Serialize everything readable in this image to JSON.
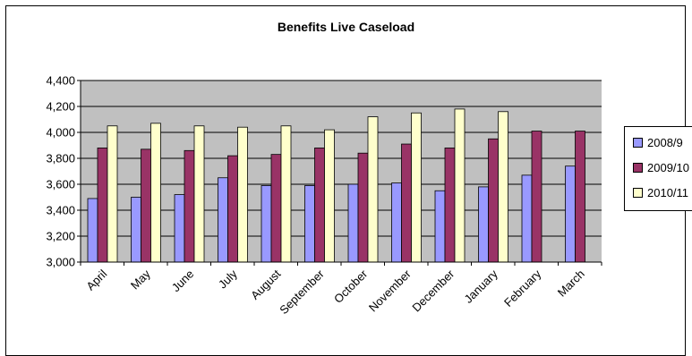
{
  "chart_data": {
    "type": "bar",
    "title": "Benefits Live Caseload",
    "categories": [
      "April",
      "May",
      "June",
      "July",
      "August",
      "September",
      "October",
      "November",
      "December",
      "January",
      "February",
      "March"
    ],
    "series": [
      {
        "name": "2008/9",
        "color": "#9999FF",
        "values": [
          3490,
          3500,
          3520,
          3650,
          3590,
          3590,
          3600,
          3610,
          3550,
          3580,
          3670,
          3740
        ]
      },
      {
        "name": "2009/10",
        "color": "#993366",
        "values": [
          3880,
          3870,
          3860,
          3820,
          3830,
          3880,
          3840,
          3910,
          3880,
          3950,
          4010,
          4010
        ]
      },
      {
        "name": "2010/11",
        "color": "#FFFFCC",
        "values": [
          4050,
          4070,
          4050,
          4040,
          4050,
          4020,
          4120,
          4150,
          4180,
          4160,
          null,
          null
        ]
      }
    ],
    "yticks": [
      "3,000",
      "3,200",
      "3,400",
      "3,600",
      "3,800",
      "4,000",
      "4,200",
      "4,400"
    ],
    "ylim": [
      3000,
      4400
    ],
    "grid": true,
    "plot_background": "#C0C0C0",
    "legend_position": "right"
  }
}
